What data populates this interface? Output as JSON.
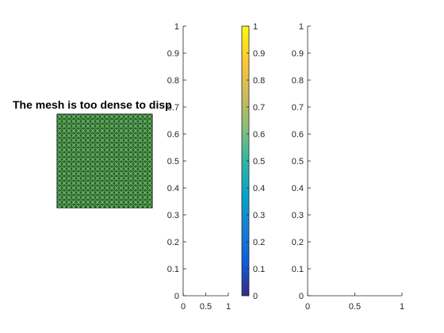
{
  "chart_data": [
    {
      "type": "mesh",
      "title": "The mesh is too dense to disp",
      "axes_visible": false,
      "face_color": "#3f6b3a",
      "edge_color": "#66d36a"
    },
    {
      "type": "line",
      "title": "",
      "xlabel": "",
      "ylabel": "",
      "xlim": [
        0,
        1
      ],
      "ylim": [
        0,
        1
      ],
      "xticks": [
        "0",
        "0.5",
        "1"
      ],
      "yticks": [
        "0",
        "0.1",
        "0.2",
        "0.3",
        "0.4",
        "0.5",
        "0.6",
        "0.7",
        "0.8",
        "0.9",
        "1"
      ],
      "series": []
    },
    {
      "type": "colorbar",
      "colormap": "parula",
      "colormap_stops": [
        "#352a87",
        "#0f5cdd",
        "#1481d6",
        "#06a4ca",
        "#2eb7a4",
        "#87bf77",
        "#d1bb59",
        "#fec832",
        "#f9fb0e"
      ],
      "clim": [
        0,
        1
      ],
      "ticks": [
        "0",
        "0.1",
        "0.2",
        "0.3",
        "0.4",
        "0.5",
        "0.6",
        "0.7",
        "0.8",
        "0.9",
        "1"
      ]
    },
    {
      "type": "line",
      "title": "",
      "xlabel": "",
      "ylabel": "",
      "xlim": [
        0,
        1
      ],
      "ylim": [
        0,
        1
      ],
      "xticks": [
        "0",
        "0.5",
        "1"
      ],
      "yticks": [
        "0",
        "0.1",
        "0.2",
        "0.3",
        "0.4",
        "0.5",
        "0.6",
        "0.7",
        "0.8",
        "0.9",
        "1"
      ],
      "series": []
    }
  ]
}
